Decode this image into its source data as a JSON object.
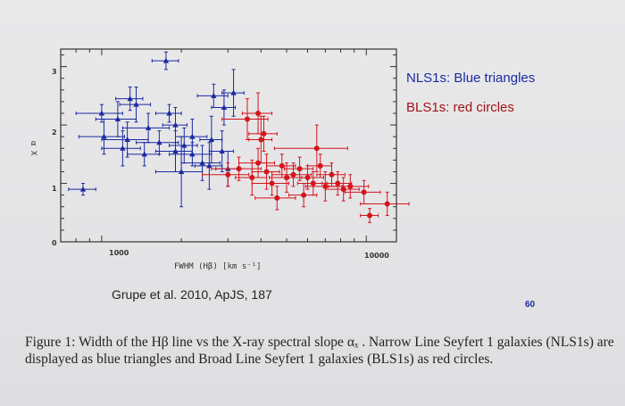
{
  "legend": {
    "blue": "NLS1s: Blue triangles",
    "red": "BLS1s: red circles"
  },
  "citation": "Grupe et al. 2010, ApJS, 187",
  "page_number": "60",
  "caption": "Figure 1: Width of the Hβ line vs the X-ray spectral slope αₓ . Narrow Line Seyfert 1 galaxies (NLS1s) are displayed as blue triangles and Broad Line Seyfert 1 galaxies (BLS1s) as red circles.",
  "colors": {
    "blue": "#1a2aa0",
    "red": "#d4141c"
  },
  "chart_data": {
    "type": "scatter",
    "title": "",
    "xlabel": "FWHM (Hβ) [km s⁻¹]",
    "ylabel": "α X",
    "xscale": "log",
    "xlim": [
      700,
      13000
    ],
    "ylim": [
      0,
      3.3
    ],
    "x_tick_labels": [
      "1000",
      "10000"
    ],
    "y_tick_labels": [
      "0",
      "1",
      "2",
      "3"
    ],
    "series": [
      {
        "name": "NLS1s",
        "marker": "triangle",
        "points": [
          {
            "x": 1000,
            "y": 2.2,
            "xerr": 200,
            "yerr": 0.15
          },
          {
            "x": 1280,
            "y": 2.45,
            "xerr": 150,
            "yerr": 0.2
          },
          {
            "x": 1350,
            "y": 2.35,
            "xerr": 180,
            "yerr": 0.3
          },
          {
            "x": 1250,
            "y": 1.75,
            "xerr": 250,
            "yerr": 0.3
          },
          {
            "x": 1500,
            "y": 1.95,
            "xerr": 300,
            "yerr": 0.25
          },
          {
            "x": 1450,
            "y": 1.5,
            "xerr": 200,
            "yerr": 0.2
          },
          {
            "x": 1800,
            "y": 2.2,
            "xerr": 200,
            "yerr": 0.15
          },
          {
            "x": 1900,
            "y": 1.55,
            "xerr": 300,
            "yerr": 0.35
          },
          {
            "x": 2050,
            "y": 1.65,
            "xerr": 250,
            "yerr": 0.3
          },
          {
            "x": 2200,
            "y": 1.5,
            "xerr": 400,
            "yerr": 0.2
          },
          {
            "x": 2200,
            "y": 1.8,
            "xerr": 300,
            "yerr": 0.3
          },
          {
            "x": 1750,
            "y": 3.1,
            "xerr": 200,
            "yerr": 0.15
          },
          {
            "x": 2400,
            "y": 1.35,
            "xerr": 400,
            "yerr": 0.3
          },
          {
            "x": 2000,
            "y": 1.2,
            "xerr": 400,
            "yerr": 0.6
          },
          {
            "x": 2600,
            "y": 1.75,
            "xerr": 250,
            "yerr": 0.4
          },
          {
            "x": 2650,
            "y": 2.5,
            "xerr": 350,
            "yerr": 0.2
          },
          {
            "x": 2550,
            "y": 1.3,
            "xerr": 300,
            "yerr": 0.4
          },
          {
            "x": 2850,
            "y": 1.55,
            "xerr": 300,
            "yerr": 0.35
          },
          {
            "x": 2900,
            "y": 2.3,
            "xerr": 300,
            "yerr": 0.3
          },
          {
            "x": 3000,
            "y": 1.25,
            "xerr": 300,
            "yerr": 0.3
          },
          {
            "x": 1020,
            "y": 1.8,
            "xerr": 200,
            "yerr": 0.3
          },
          {
            "x": 1200,
            "y": 1.6,
            "xerr": 200,
            "yerr": 0.3
          },
          {
            "x": 1650,
            "y": 1.7,
            "xerr": 300,
            "yerr": 0.2
          },
          {
            "x": 1900,
            "y": 2.0,
            "xerr": 200,
            "yerr": 0.3
          },
          {
            "x": 3150,
            "y": 2.55,
            "xerr": 300,
            "yerr": 0.4
          },
          {
            "x": 1150,
            "y": 2.1,
            "xerr": 200,
            "yerr": 0.3
          },
          {
            "x": 850,
            "y": 0.9,
            "xerr": 100,
            "yerr": 0.1
          }
        ]
      },
      {
        "name": "BLS1s",
        "marker": "circle",
        "points": [
          {
            "x": 3550,
            "y": 2.1,
            "xerr": 700,
            "yerr": 0.35
          },
          {
            "x": 3900,
            "y": 2.2,
            "xerr": 500,
            "yerr": 0.35
          },
          {
            "x": 4000,
            "y": 1.75,
            "xerr": 400,
            "yerr": 0.4
          },
          {
            "x": 4100,
            "y": 1.85,
            "xerr": 500,
            "yerr": 0.3
          },
          {
            "x": 3300,
            "y": 1.25,
            "xerr": 700,
            "yerr": 0.2
          },
          {
            "x": 3700,
            "y": 1.1,
            "xerr": 500,
            "yerr": 0.3
          },
          {
            "x": 3900,
            "y": 1.35,
            "xerr": 600,
            "yerr": 0.25
          },
          {
            "x": 4200,
            "y": 1.2,
            "xerr": 500,
            "yerr": 0.3
          },
          {
            "x": 4400,
            "y": 1.0,
            "xerr": 700,
            "yerr": 0.2
          },
          {
            "x": 4800,
            "y": 1.3,
            "xerr": 600,
            "yerr": 0.2
          },
          {
            "x": 5000,
            "y": 1.1,
            "xerr": 700,
            "yerr": 0.25
          },
          {
            "x": 5300,
            "y": 1.15,
            "xerr": 900,
            "yerr": 0.2
          },
          {
            "x": 5600,
            "y": 1.25,
            "xerr": 700,
            "yerr": 0.2
          },
          {
            "x": 6000,
            "y": 1.1,
            "xerr": 900,
            "yerr": 0.2
          },
          {
            "x": 6300,
            "y": 1.0,
            "xerr": 800,
            "yerr": 0.2
          },
          {
            "x": 6700,
            "y": 1.3,
            "xerr": 700,
            "yerr": 0.2
          },
          {
            "x": 7000,
            "y": 0.95,
            "xerr": 1100,
            "yerr": 0.25
          },
          {
            "x": 7400,
            "y": 1.15,
            "xerr": 900,
            "yerr": 0.2
          },
          {
            "x": 7800,
            "y": 1.0,
            "xerr": 1000,
            "yerr": 0.2
          },
          {
            "x": 8200,
            "y": 0.9,
            "xerr": 1200,
            "yerr": 0.2
          },
          {
            "x": 6500,
            "y": 1.6,
            "xerr": 2000,
            "yerr": 0.4
          },
          {
            "x": 8700,
            "y": 0.95,
            "xerr": 1500,
            "yerr": 0.2
          },
          {
            "x": 9800,
            "y": 0.85,
            "xerr": 1500,
            "yerr": 0.2
          },
          {
            "x": 12000,
            "y": 0.65,
            "xerr": 2500,
            "yerr": 0.2
          },
          {
            "x": 10300,
            "y": 0.45,
            "xerr": 800,
            "yerr": 0.12
          },
          {
            "x": 3000,
            "y": 1.15,
            "xerr": 600,
            "yerr": 0.2
          },
          {
            "x": 4600,
            "y": 0.75,
            "xerr": 800,
            "yerr": 0.2
          },
          {
            "x": 5800,
            "y": 0.8,
            "xerr": 700,
            "yerr": 0.2
          }
        ]
      }
    ]
  }
}
